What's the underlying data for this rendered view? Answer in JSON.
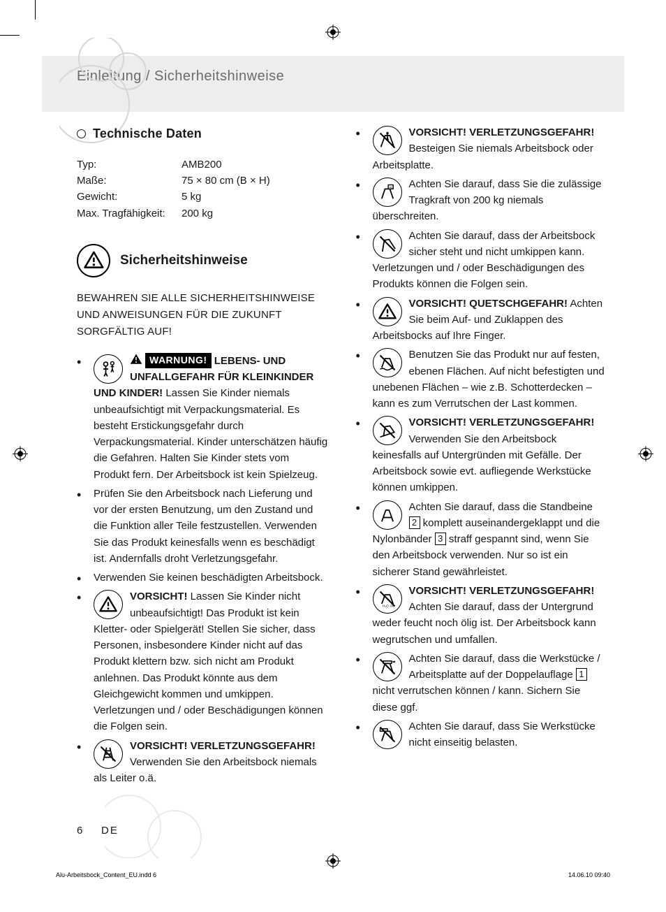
{
  "header": "Einleitung / Sicherheitshinweise",
  "tech": {
    "title": "Technische Daten",
    "rows": [
      {
        "label": "Typ:",
        "value": "AMB200"
      },
      {
        "label": "Maße:",
        "value": "75 × 80 cm (B × H)"
      },
      {
        "label": "Gewicht:",
        "value": "5 kg"
      },
      {
        "label": "Max. Tragfähigkeit:",
        "value": "200 kg"
      }
    ]
  },
  "safety": {
    "title": "Sicherheitshinweise",
    "keep": "BEWAHREN SIE ALLE SICHERHEITSHINWEISE UND ANWEISUNGEN FÜR DIE ZUKUNFT SORGFÄLTIG AUF!"
  },
  "items": [
    {
      "icon": "child",
      "bold": "LEBENS- UND UNFALLGEFAHR FÜR KLEIN­KINDER UND KINDER!",
      "badge": "WARNUNG!",
      "text": " Lassen Sie Kinder niemals unbeaufsichtigt mit Verpackungs­material. Es besteht Erstickungsgefahr durch Verpackungsmaterial. Kinder unterschätzen häufig die Gefahren. Halten Sie Kinder stets vom Produkt fern. Der Arbeitsbock ist kein Spielzeug."
    },
    {
      "icon": "",
      "bold": "",
      "text": "Prüfen Sie den Arbeitsbock nach Lieferung und vor der ersten Benutzung, um den Zustand und die Funktion aller Teile festzustellen. Verwenden Sie das Produkt keinesfalls wenn es beschädigt ist. Andernfalls droht Verletzungsgefahr."
    },
    {
      "icon": "",
      "bold": "",
      "text": "Verwenden Sie keinen beschädigten Arbeitsbock."
    },
    {
      "icon": "warn-tri",
      "bold": "VORSICHT!",
      "text": " Lassen Sie Kinder nicht unbeaufsichtigt! Das Produkt ist kein Kletter- oder Spielgerät! Stellen Sie sicher, dass Personen, insbesondere Kinder nicht auf das Produkt klettern bzw. sich nicht am Produkt anlehnen. Das Produkt könnte aus dem Gleichgewicht kommen und umkippen. Verletzungen und / oder Beschädigungen können die Folgen sein."
    },
    {
      "icon": "no-ladder",
      "bold": "VORSICHT! VERLETZUNGSGE­FAHR!",
      "text": " Verwenden Sie den Arbeits­bock niemals als Leiter o.ä."
    },
    {
      "icon": "no-climb",
      "bold": "VORSICHT! VERLETZUNGSGE­FAHR!",
      "text": " Besteigen Sie niemals Arbeitsbock oder Arbeitsplatte."
    },
    {
      "icon": "load",
      "bold": "",
      "text": "Achten Sie darauf, dass Sie die zulässige Tragkraft von 200 kg niemals überschreiten."
    },
    {
      "icon": "no-tilt",
      "bold": "",
      "text": "Achten Sie darauf, dass der Arbeits­bock sicher steht und nicht umkippen kann. Verletzungen und / oder Beschädigungen des Produkts können die Folgen sein."
    },
    {
      "icon": "warn-tri",
      "bold": "VORSICHT! QUETSCHGEFAHR!",
      "text": " Achten Sie beim Auf- und Zuklappen des Arbeitsbocks auf Ihre Finger."
    },
    {
      "icon": "no-uneven",
      "bold": "",
      "text": "Benutzen Sie das Produkt nur auf festen, ebenen Flächen. Auf nicht befestigten und unebenen Flächen – wie z.B. Schotterdecken – kann es zum Verrut­schen der Last kommen."
    },
    {
      "icon": "no-slope",
      "bold": "VORSICHT! VERLETZUNGSGE­FAHR!",
      "text": " Verwenden Sie den Arbeits­bock keinesfalls auf Untergründen mit Gefälle. Der Arbeitsbock sowie evt. aufliegende Werkstücke können umkippen."
    },
    {
      "icon": "legs",
      "bold": "",
      "pre": "Achten Sie darauf, dass die Standbeine ",
      "num1": "2",
      "mid": " komplett auseinandergeklappt und die Nylonbänder ",
      "num2": "3",
      "text": " straff gespannt sind, wenn Sie den Arbeitsbock verwenden. Nur so ist ein sicherer Stand gewährleistet."
    },
    {
      "icon": "no-wet",
      "bold": "VORSICHT! VERLETZUNGSGE­FAHR!",
      "text": " Achten Sie darauf, dass der Untergrund weder feucht noch ölig ist. Der Arbeitsbock kann wegrutschen und umfallen."
    },
    {
      "icon": "no-slip",
      "bold": "",
      "pre": "Achten Sie darauf, dass die Werk­stücke / Arbeitsplatte auf der Doppel­auflage ",
      "num1": "1",
      "text": " nicht verrutschen können / kann. Sichern Sie diese ggf."
    },
    {
      "icon": "no-oneside",
      "bold": "",
      "text": "Achten Sie darauf, dass Sie Werk­stücke nicht einseitig belasten."
    }
  ],
  "footer": {
    "page": "6",
    "lang": "DE"
  },
  "imprint": {
    "file": "Alu-Arbeitsbock_Content_EU.indd   6",
    "date": "14.06.10   09:40"
  }
}
